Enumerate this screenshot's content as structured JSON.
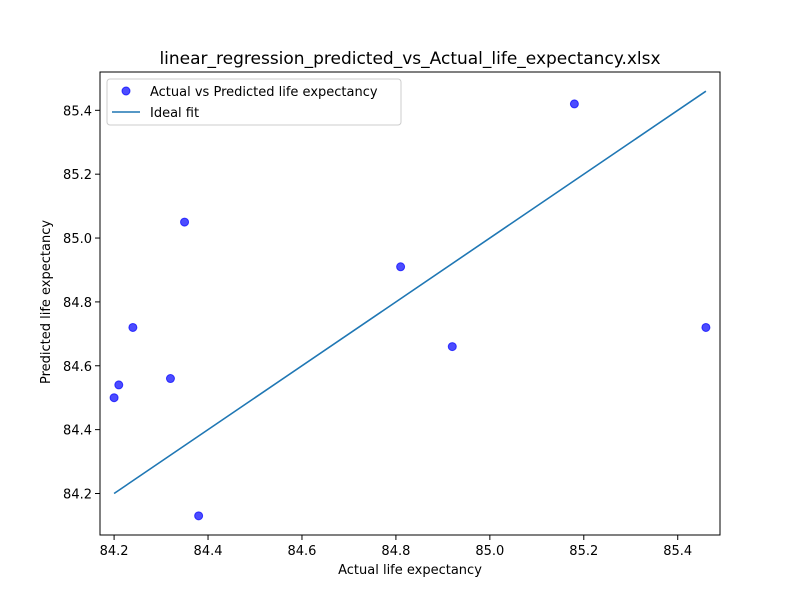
{
  "chart_data": {
    "type": "scatter",
    "title": "linear_regression_predicted_vs_Actual_life_expectancy.xlsx",
    "xlabel": "Actual life expectancy",
    "ylabel": "Predicted life expectancy",
    "xlim": [
      84.17,
      85.49
    ],
    "ylim": [
      84.07,
      85.52
    ],
    "xticks": [
      84.2,
      84.4,
      84.6,
      84.8,
      85.0,
      85.2,
      85.4
    ],
    "xtick_labels": [
      "84.2",
      "84.4",
      "84.6",
      "84.8",
      "85.0",
      "85.2",
      "85.4"
    ],
    "yticks": [
      84.2,
      84.4,
      84.6,
      84.8,
      85.0,
      85.2,
      85.4
    ],
    "ytick_labels": [
      "84.2",
      "84.4",
      "84.6",
      "84.8",
      "85.0",
      "85.2",
      "85.4"
    ],
    "grid": false,
    "legend_position": "top-left",
    "series": [
      {
        "name": "Actual vs Predicted life expectancy",
        "kind": "scatter",
        "color": "#0000ff",
        "points": [
          {
            "x": 84.2,
            "y": 84.5
          },
          {
            "x": 84.21,
            "y": 84.54
          },
          {
            "x": 84.24,
            "y": 84.72
          },
          {
            "x": 84.32,
            "y": 84.56
          },
          {
            "x": 84.35,
            "y": 85.05
          },
          {
            "x": 84.38,
            "y": 84.13
          },
          {
            "x": 84.81,
            "y": 84.91
          },
          {
            "x": 84.92,
            "y": 84.66
          },
          {
            "x": 85.18,
            "y": 85.42
          },
          {
            "x": 85.46,
            "y": 84.72
          }
        ]
      },
      {
        "name": "Ideal fit",
        "kind": "line",
        "color": "#1f77b4",
        "points": [
          {
            "x": 84.2,
            "y": 84.2
          },
          {
            "x": 85.46,
            "y": 85.46
          }
        ]
      }
    ]
  }
}
